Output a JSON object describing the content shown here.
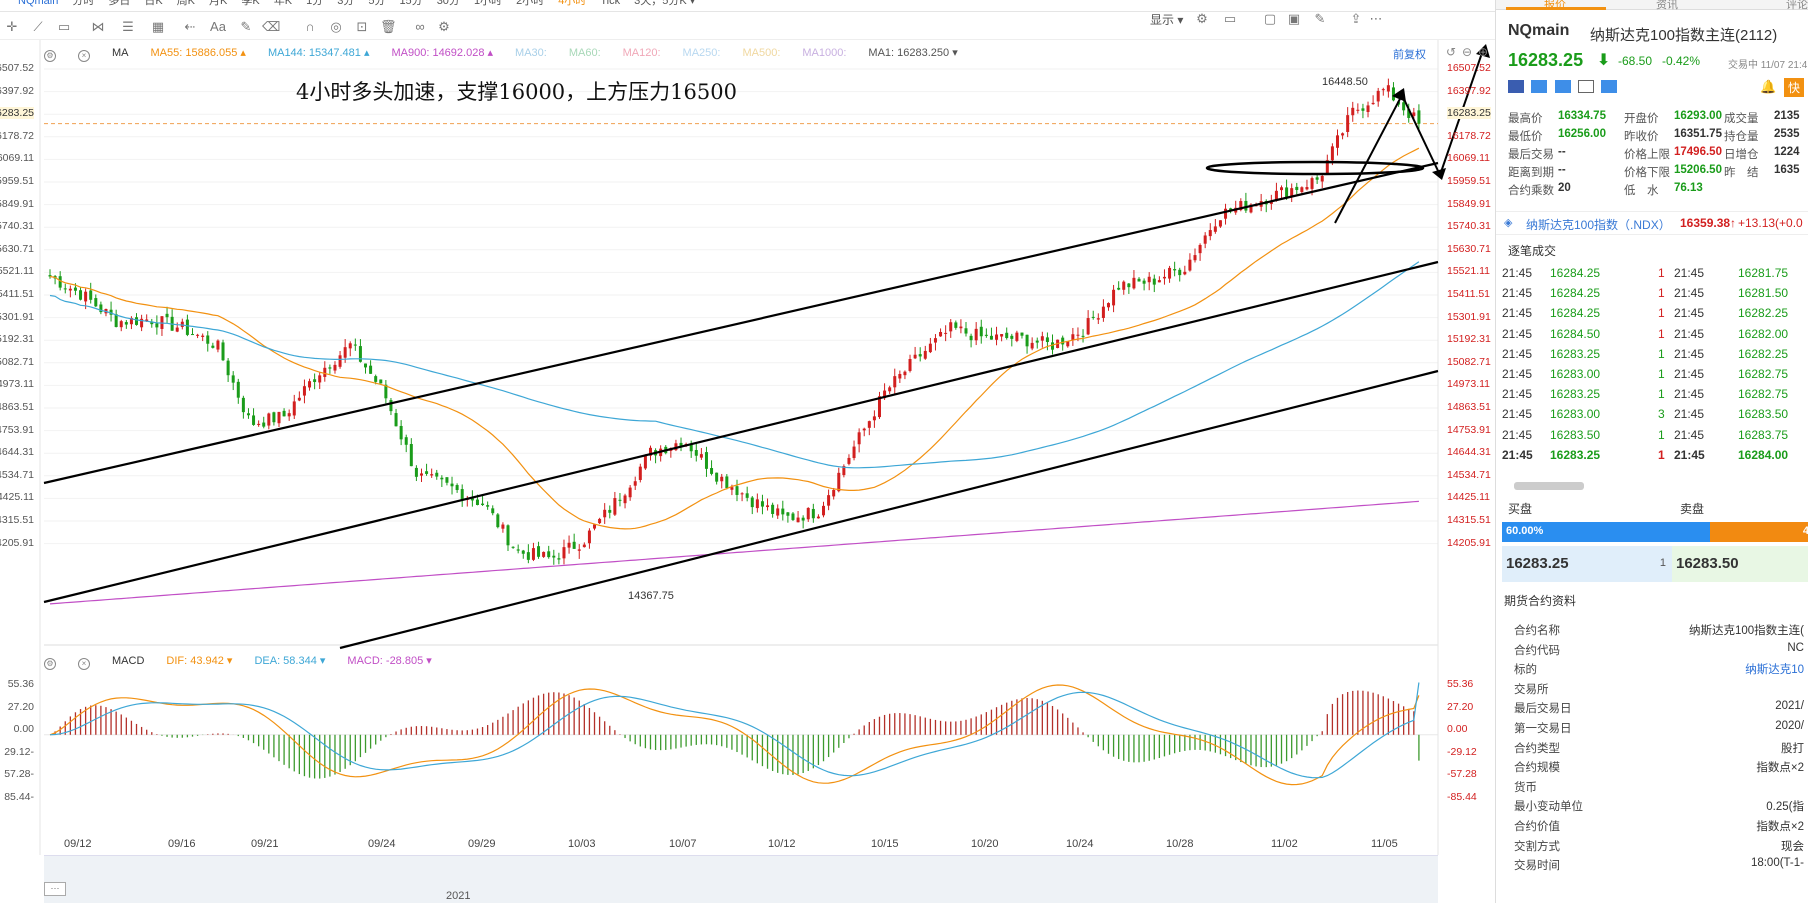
{
  "top_bar": {
    "symbol": "NQmain",
    "periods": [
      "分时",
      "多日",
      "日K",
      "周K",
      "月K",
      "季K",
      "年K",
      "1分",
      "3分",
      "5分",
      "15分",
      "30分",
      "1小时",
      "2小时",
      "4小时",
      "Tick",
      "3天，5分K ▾"
    ],
    "active_period": "4小时"
  },
  "toolbar": {
    "display_label": "显示 ▾"
  },
  "chart": {
    "ma_label": "MA",
    "ma_items": [
      {
        "text": "MA55: 15886.055 ▴",
        "color": "#f29111"
      },
      {
        "text": "MA144: 15347.481 ▴",
        "color": "#3ea7d6"
      },
      {
        "text": "MA900: 14692.028 ▴",
        "color": "#c14fc6"
      },
      {
        "text": "MA30:",
        "color": "#a8cfe8"
      },
      {
        "text": "MA60:",
        "color": "#a8d8b8"
      },
      {
        "text": "MA120:",
        "color": "#f0a8b8"
      },
      {
        "text": "MA250:",
        "color": "#b8d8f0"
      },
      {
        "text": "MA500:",
        "color": "#f0d8a0"
      },
      {
        "text": "MA1000:",
        "color": "#c8b0e0"
      },
      {
        "text": "MA1: 16283.250 ▾",
        "color": "#555"
      }
    ],
    "restore_label": "前复权",
    "annotation": "4小时多头加速，支撑16000，上方压力16500",
    "price_labels": [
      "16507.52",
      "16397.92",
      "16283.25",
      "16178.72",
      "16069.11",
      "15959.51",
      "15849.91",
      "15740.31",
      "15630.71",
      "15521.11",
      "15411.51",
      "15301.91",
      "15192.31",
      "15082.71",
      "14973.11",
      "14863.51",
      "14753.91",
      "14644.31",
      "14534.71",
      "14425.11",
      "14315.51",
      "14205.91"
    ],
    "left_price_labels": [
      "16507.52",
      "16397.92",
      "16283.25",
      "16178.72",
      "16069.11",
      "15959.51",
      "15849.91",
      "15740.31",
      "15630.71",
      "15521.11",
      "15411.51",
      "15301.91",
      "15192.31",
      "15082.71",
      "14973.11",
      "14863.51",
      "14753.91",
      "14644.31",
      "14534.71",
      "14425.11",
      "14315.51",
      "14205.91"
    ],
    "high_label": "16448.50",
    "low_label": "14367.75",
    "current_price": "16283.25",
    "macd_label": "MACD",
    "macd_items": [
      {
        "text": "DIF: 43.942 ▾",
        "color": "#f29111"
      },
      {
        "text": "DEA: 58.344 ▾",
        "color": "#3ea7d6"
      },
      {
        "text": "MACD: -28.805 ▾",
        "color": "#c14fc6"
      }
    ],
    "macd_axis": [
      "55.36",
      "27.20",
      "0.00",
      "-29.12",
      "-57.28",
      "-85.44"
    ],
    "x_dates": [
      "09/12",
      "09/16",
      "09/21",
      "09/24",
      "09/29",
      "10/03",
      "10/07",
      "10/12",
      "10/15",
      "10/20",
      "10/24",
      "10/28",
      "11/02",
      "11/05"
    ],
    "year": "2021"
  },
  "chart_data": {
    "type": "candlestick",
    "title": "NQmain 4小时",
    "y_range": [
      14150,
      16560
    ],
    "ma55_last": 15886.055,
    "ma144_last": 15347.481,
    "ma900_last": 14692.028,
    "high": 16448.5,
    "low": 14367.75,
    "last": 16283.25,
    "x_dates": [
      "09/12",
      "09/16",
      "09/21",
      "09/24",
      "09/29",
      "10/03",
      "10/07",
      "10/12",
      "10/15",
      "10/20",
      "10/24",
      "10/28",
      "11/02",
      "11/05"
    ],
    "approx_closes": [
      15640,
      15560,
      15450,
      15460,
      15420,
      15350,
      15020,
      15050,
      15230,
      15350,
      15150,
      14800,
      14750,
      14680,
      14480,
      14450,
      14530,
      14700,
      14900,
      14950,
      14800,
      14700,
      14620,
      14650,
      14900,
      15150,
      15300,
      15420,
      15380,
      15380,
      15350,
      15420,
      15600,
      15620,
      15680,
      15900,
      15950,
      16000,
      16050,
      16330,
      16430,
      16283
    ],
    "macd": {
      "dif": 43.942,
      "dea": 58.344,
      "macd": -28.805,
      "y_range": [
        -95,
        70
      ]
    }
  },
  "panel": {
    "tabs": [
      "报价",
      "资讯",
      "评论"
    ],
    "title_symbol": "NQmain",
    "title_name": "纳斯达克100指数主连(2112)",
    "price": "16283.25",
    "arrow": "⬇",
    "change": "-68.50",
    "change_pct": "-0.42%",
    "status": "交易中 11/07 21:4",
    "quick": "快",
    "quote_rows": [
      [
        {
          "k": "最高价",
          "v": "16334.75",
          "c": "g"
        },
        {
          "k": "开盘价",
          "v": "16293.00",
          "c": "g"
        },
        {
          "k": "成交量",
          "v": "2135",
          "c": ""
        }
      ],
      [
        {
          "k": "最低价",
          "v": "16256.00",
          "c": "g"
        },
        {
          "k": "昨收价",
          "v": "16351.75",
          "c": ""
        },
        {
          "k": "持仓量",
          "v": "2535",
          "c": ""
        }
      ],
      [
        {
          "k": "最后交易",
          "v": "--",
          "c": ""
        },
        {
          "k": "价格上限",
          "v": "17496.50",
          "c": "r"
        },
        {
          "k": "日增仓",
          "v": "1224",
          "c": ""
        }
      ],
      [
        {
          "k": "距离到期",
          "v": "--",
          "c": ""
        },
        {
          "k": "价格下限",
          "v": "15206.50",
          "c": "g"
        },
        {
          "k": "昨　结",
          "v": "1635",
          "c": ""
        }
      ],
      [
        {
          "k": "合约乘数",
          "v": "20",
          "c": ""
        },
        {
          "k": "低　水",
          "v": "76.13",
          "c": "g"
        },
        {
          "k": "",
          "v": "",
          "c": ""
        }
      ]
    ],
    "index_name": "纳斯达克100指数（.NDX）",
    "index_price": "16359.38↑",
    "index_change": "+13.13(+0.0",
    "ticks_title": "逐笔成交",
    "ticks": [
      {
        "t1": "21:45",
        "p1": "16284.25",
        "c1": "g",
        "n1": "1",
        "nc1": "r",
        "t2": "21:45",
        "p2": "16281.75",
        "c2": "g"
      },
      {
        "t1": "21:45",
        "p1": "16284.25",
        "c1": "g",
        "n1": "1",
        "nc1": "r",
        "t2": "21:45",
        "p2": "16281.50",
        "c2": "g"
      },
      {
        "t1": "21:45",
        "p1": "16284.25",
        "c1": "g",
        "n1": "1",
        "nc1": "r",
        "t2": "21:45",
        "p2": "16282.25",
        "c2": "g"
      },
      {
        "t1": "21:45",
        "p1": "16284.50",
        "c1": "g",
        "n1": "1",
        "nc1": "r",
        "t2": "21:45",
        "p2": "16282.00",
        "c2": "g"
      },
      {
        "t1": "21:45",
        "p1": "16283.25",
        "c1": "g",
        "n1": "1",
        "nc1": "g",
        "t2": "21:45",
        "p2": "16282.25",
        "c2": "g"
      },
      {
        "t1": "21:45",
        "p1": "16283.00",
        "c1": "g",
        "n1": "1",
        "nc1": "g",
        "t2": "21:45",
        "p2": "16282.75",
        "c2": "g"
      },
      {
        "t1": "21:45",
        "p1": "16283.25",
        "c1": "g",
        "n1": "1",
        "nc1": "g",
        "t2": "21:45",
        "p2": "16282.75",
        "c2": "g"
      },
      {
        "t1": "21:45",
        "p1": "16283.00",
        "c1": "g",
        "n1": "3",
        "nc1": "g",
        "t2": "21:45",
        "p2": "16283.50",
        "c2": "g"
      },
      {
        "t1": "21:45",
        "p1": "16283.50",
        "c1": "g",
        "n1": "1",
        "nc1": "g",
        "t2": "21:45",
        "p2": "16283.75",
        "c2": "g"
      },
      {
        "t1": "21:45",
        "p1": "16283.25",
        "c1": "g",
        "n1": "1",
        "nc1": "r",
        "t2": "21:45",
        "p2": "16284.00",
        "c2": "g"
      }
    ],
    "buy_label": "买盘",
    "sell_label": "卖盘",
    "buy_pct": "60.00%",
    "sell_pct": "4",
    "bid": "16283.25",
    "bid_size": "1",
    "ask": "16283.50",
    "contract_title": "期货合约资料",
    "contract_rows": [
      {
        "k": "合约名称",
        "v": "纳斯达克100指数主连(",
        "link": false
      },
      {
        "k": "合约代码",
        "v": "NC",
        "link": false
      },
      {
        "k": "标的",
        "v": "纳斯达克10",
        "link": true
      },
      {
        "k": "交易所",
        "v": "",
        "link": false
      },
      {
        "k": "最后交易日",
        "v": "2021/",
        "link": false
      },
      {
        "k": "第一交易日",
        "v": "2020/",
        "link": false
      },
      {
        "k": "合约类型",
        "v": "股打",
        "link": false
      },
      {
        "k": "合约规模",
        "v": "指数点×2",
        "link": false
      },
      {
        "k": "货币",
        "v": "",
        "link": false
      },
      {
        "k": "最小变动单位",
        "v": "0.25(指",
        "link": false
      },
      {
        "k": "合约价值",
        "v": "指数点×2",
        "link": false
      },
      {
        "k": "交割方式",
        "v": "现会",
        "link": false
      },
      {
        "k": "交易时间",
        "v": "18:00(T-1-",
        "link": false
      }
    ]
  }
}
